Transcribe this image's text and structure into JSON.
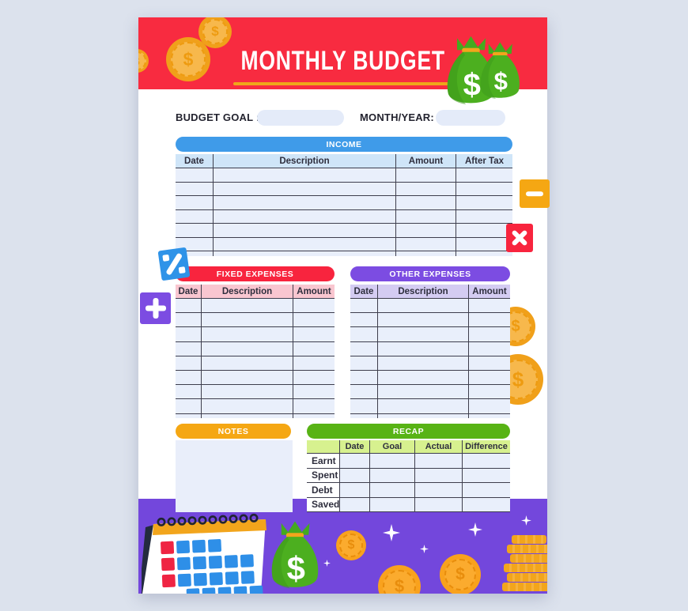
{
  "header": {
    "title": "MONTHLY BUDGET"
  },
  "form": {
    "budget_goal_label": "BUDGET GOAL :",
    "budget_goal_value": "",
    "month_year_label": "MONTH/YEAR:",
    "month_year_value": ""
  },
  "tables": {
    "income": {
      "title": "INCOME",
      "columns": [
        "Date",
        "Description",
        "Amount",
        "After Tax"
      ],
      "empty_rows": 6
    },
    "fixed": {
      "title": "FIXED EXPENSES",
      "columns": [
        "Date",
        "Description",
        "Amount"
      ],
      "empty_rows": 8
    },
    "other": {
      "title": "OTHER EXPENSES",
      "columns": [
        "Date",
        "Description",
        "Amount"
      ],
      "empty_rows": 8
    },
    "recap": {
      "title": "RECAP",
      "columns": [
        "",
        "Date",
        "Goal",
        "Actual",
        "Difference"
      ],
      "rows": [
        "Earnt",
        "Spent",
        "Debt",
        "Saved"
      ]
    }
  },
  "notes": {
    "title": "NOTES",
    "value": ""
  },
  "glyphs": {
    "dollar": "$",
    "percent": "%"
  },
  "decorations": [
    "coin-icon",
    "money-bag-icon",
    "calendar-icon",
    "sparkle-icon",
    "coin-stack-icon",
    "minus-icon",
    "multiply-icon",
    "percent-icon",
    "plus-icon"
  ],
  "colors": {
    "header_red": "#f82b40",
    "income_blue": "#3f9be9",
    "fixed_red": "#f8243e",
    "other_purple": "#7c4ce2",
    "notes_orange": "#f5a713",
    "recap_green": "#58b315",
    "footer_purple": "#7347dc",
    "coin_gold": "#f2a51c",
    "bag_green": "#4caf1f"
  }
}
